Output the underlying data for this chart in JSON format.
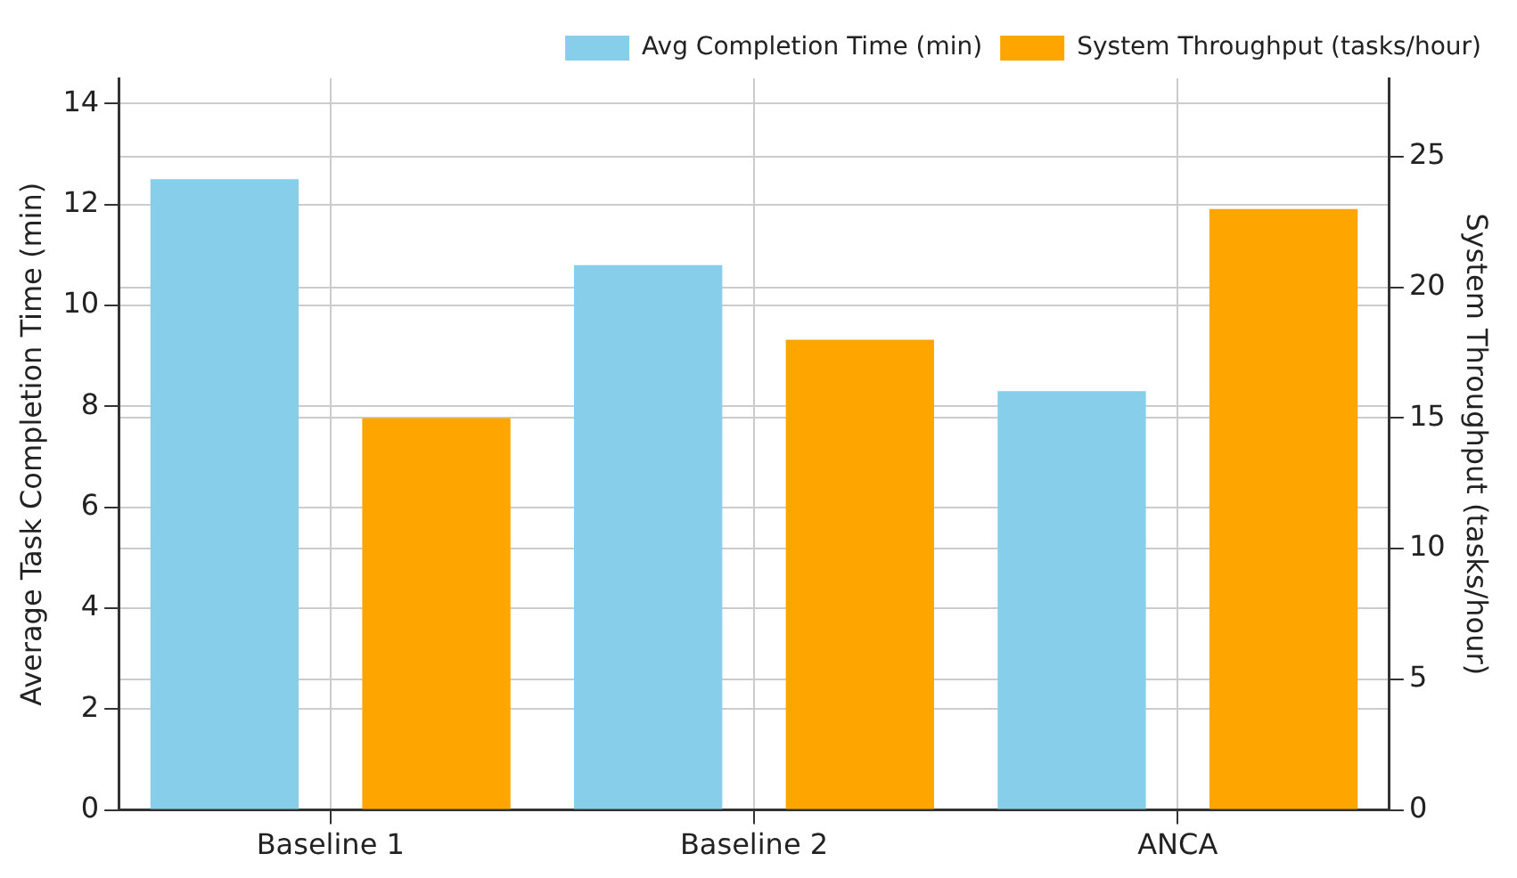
{
  "chart_data": {
    "type": "bar",
    "categories": [
      "Baseline 1",
      "Baseline 2",
      "ANCA"
    ],
    "series": [
      {
        "name": "Avg Completion Time (min)",
        "color": "#87ceeb",
        "values": [
          12.5,
          10.8,
          8.3
        ]
      },
      {
        "name": "System Throughput (tasks/hour)",
        "color": "#ffa500",
        "values": [
          15,
          18,
          23
        ],
        "axis": "y2"
      }
    ],
    "ylabel": "Average Task Completion Time (min)",
    "y2label": "System Throughput (tasks/hour)",
    "ylim": [
      0,
      14.5
    ],
    "yticks": [
      0,
      2,
      4,
      6,
      8,
      10,
      12,
      14
    ],
    "y2lim": [
      0,
      28
    ],
    "y2ticks": [
      0,
      5,
      10,
      15,
      20,
      25
    ],
    "grid": true,
    "legend": "top right"
  }
}
